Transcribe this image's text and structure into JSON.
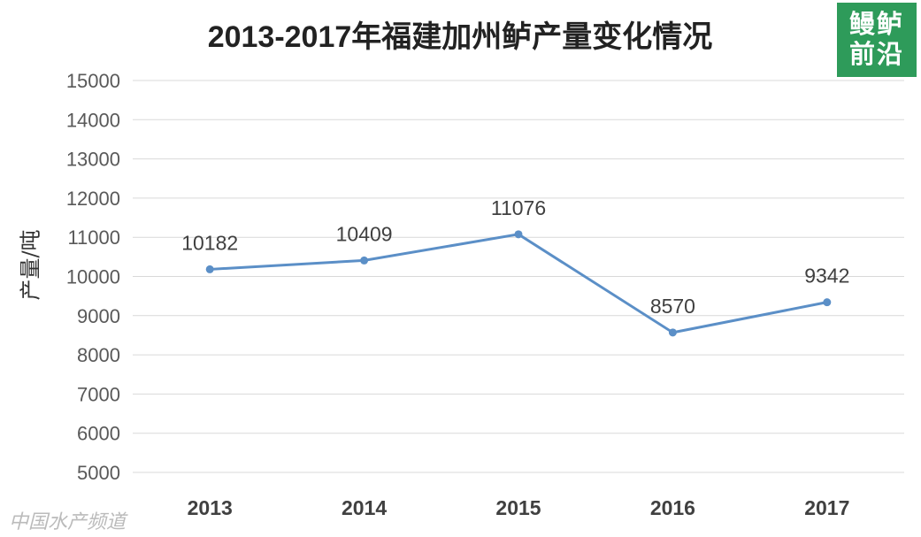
{
  "chart_data": {
    "type": "line",
    "title": "2013-2017年福建加州鲈产量变化情况",
    "xlabel": "",
    "ylabel": "产量/吨",
    "categories": [
      "2013",
      "2014",
      "2015",
      "2016",
      "2017"
    ],
    "series": [
      {
        "name": "产量",
        "values": [
          10182,
          10409,
          11076,
          8570,
          9342
        ]
      }
    ],
    "data_labels": [
      "10182",
      "10409",
      "11076",
      "8570",
      "9342"
    ],
    "ylim": [
      5000,
      15000
    ],
    "yticks": [
      5000,
      6000,
      7000,
      8000,
      9000,
      10000,
      11000,
      12000,
      13000,
      14000,
      15000
    ],
    "grid": true,
    "line_color": "#5b8fc7"
  },
  "logo": {
    "text": "鳗鲈前沿"
  },
  "watermark": {
    "text": "中国水产频道"
  }
}
